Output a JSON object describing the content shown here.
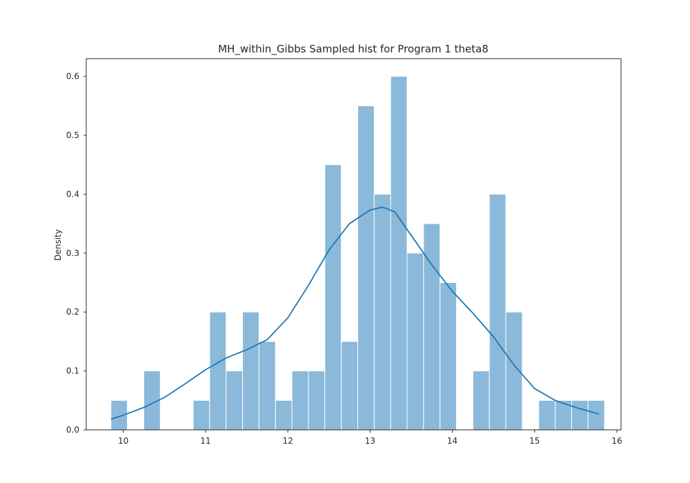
{
  "chart_data": {
    "type": "bar",
    "title": "MH_within_Gibbs Sampled hist for Program 1 theta8",
    "xlabel": "",
    "ylabel": "Density",
    "xlim": [
      9.55,
      16.05
    ],
    "ylim": [
      0,
      0.63
    ],
    "xticks": [
      10,
      11,
      12,
      13,
      14,
      15,
      16
    ],
    "xtick_labels": [
      "10",
      "11",
      "12",
      "13",
      "14",
      "15",
      "16"
    ],
    "yticks": [
      0.0,
      0.1,
      0.2,
      0.3,
      0.4,
      0.5,
      0.6
    ],
    "ytick_labels": [
      "0.0",
      "0.1",
      "0.2",
      "0.3",
      "0.4",
      "0.5",
      "0.6"
    ],
    "grid": false,
    "bar_color": "#8ab9d9",
    "line_color": "#1f77b4",
    "bins": [
      {
        "x0": 9.85,
        "x1": 10.05,
        "density": 0.05
      },
      {
        "x0": 10.05,
        "x1": 10.25,
        "density": 0.0
      },
      {
        "x0": 10.25,
        "x1": 10.45,
        "density": 0.1
      },
      {
        "x0": 10.45,
        "x1": 10.65,
        "density": 0.0
      },
      {
        "x0": 10.65,
        "x1": 10.85,
        "density": 0.0
      },
      {
        "x0": 10.85,
        "x1": 11.05,
        "density": 0.05
      },
      {
        "x0": 11.05,
        "x1": 11.25,
        "density": 0.2
      },
      {
        "x0": 11.25,
        "x1": 11.45,
        "density": 0.1
      },
      {
        "x0": 11.45,
        "x1": 11.65,
        "density": 0.2
      },
      {
        "x0": 11.65,
        "x1": 11.85,
        "density": 0.15
      },
      {
        "x0": 11.85,
        "x1": 12.05,
        "density": 0.05
      },
      {
        "x0": 12.05,
        "x1": 12.25,
        "density": 0.1
      },
      {
        "x0": 12.25,
        "x1": 12.45,
        "density": 0.1
      },
      {
        "x0": 12.45,
        "x1": 12.65,
        "density": 0.45
      },
      {
        "x0": 12.65,
        "x1": 12.85,
        "density": 0.15
      },
      {
        "x0": 12.85,
        "x1": 13.05,
        "density": 0.55
      },
      {
        "x0": 13.05,
        "x1": 13.25,
        "density": 0.4
      },
      {
        "x0": 13.25,
        "x1": 13.45,
        "density": 0.6
      },
      {
        "x0": 13.45,
        "x1": 13.65,
        "density": 0.3
      },
      {
        "x0": 13.65,
        "x1": 13.85,
        "density": 0.35
      },
      {
        "x0": 13.85,
        "x1": 14.05,
        "density": 0.25
      },
      {
        "x0": 14.05,
        "x1": 14.25,
        "density": 0.0
      },
      {
        "x0": 14.25,
        "x1": 14.45,
        "density": 0.1
      },
      {
        "x0": 14.45,
        "x1": 14.65,
        "density": 0.4
      },
      {
        "x0": 14.65,
        "x1": 14.85,
        "density": 0.2
      },
      {
        "x0": 14.85,
        "x1": 15.05,
        "density": 0.0
      },
      {
        "x0": 15.05,
        "x1": 15.25,
        "density": 0.05
      },
      {
        "x0": 15.25,
        "x1": 15.45,
        "density": 0.05
      },
      {
        "x0": 15.45,
        "x1": 15.65,
        "density": 0.05
      },
      {
        "x0": 15.65,
        "x1": 15.85,
        "density": 0.05
      }
    ],
    "kde": {
      "x": [
        9.85,
        10.0,
        10.25,
        10.5,
        10.75,
        11.0,
        11.25,
        11.5,
        11.75,
        12.0,
        12.25,
        12.5,
        12.75,
        13.0,
        13.15,
        13.3,
        13.5,
        13.75,
        14.0,
        14.25,
        14.5,
        14.75,
        15.0,
        15.25,
        15.5,
        15.78
      ],
      "y": [
        0.018,
        0.025,
        0.038,
        0.055,
        0.078,
        0.102,
        0.122,
        0.136,
        0.153,
        0.19,
        0.245,
        0.305,
        0.35,
        0.373,
        0.378,
        0.37,
        0.33,
        0.28,
        0.235,
        0.198,
        0.158,
        0.11,
        0.07,
        0.05,
        0.038,
        0.027
      ]
    }
  }
}
